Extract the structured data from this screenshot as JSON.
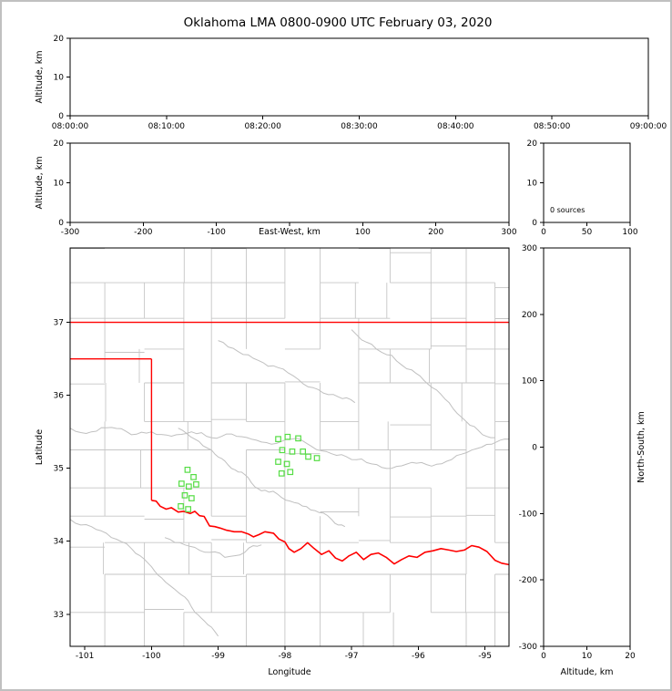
{
  "title": "Oklahoma LMA 0800-0900 UTC February 03, 2020",
  "colors": {
    "frame": "#c0c0c0",
    "axis": "#000000",
    "county_line": "#c6c6c6",
    "river_gray": "#c0c0c0",
    "state_border": "#ff0000",
    "station_green": "#55dd44",
    "background": "#ffffff"
  },
  "chart_data": [
    {
      "id": "time_height_panel",
      "type": "scatter",
      "ylabel": "Altitude, km",
      "ylim": [
        0,
        20
      ],
      "yticks": [
        0,
        10,
        20
      ],
      "xtick_labels": [
        "08:00:00",
        "08:10:00",
        "08:20:00",
        "08:30:00",
        "08:40:00",
        "08:50:00",
        "09:00:00"
      ],
      "points": []
    },
    {
      "id": "ew_height_panel",
      "type": "scatter",
      "xlabel": "East-West, km",
      "xlim": [
        -300,
        300
      ],
      "xticks": [
        -300,
        -200,
        -100,
        0,
        100,
        200,
        300
      ],
      "ylabel": "Altitude, km",
      "ylim": [
        0,
        20
      ],
      "yticks": [
        0,
        10,
        20
      ],
      "points": []
    },
    {
      "id": "altitude_histogram_panel",
      "type": "histogram",
      "annotation": "0 sources",
      "xlim": [
        0,
        100
      ],
      "xticks": [
        0,
        50,
        100
      ],
      "ylim": [
        0,
        20
      ],
      "yticks": [
        0,
        10,
        20
      ],
      "values": []
    },
    {
      "id": "plan_view_map",
      "type": "scatter",
      "xlabel": "Longitude",
      "ylabel": "Latitude",
      "xlim": [
        -101.22,
        -94.64
      ],
      "xticks": [
        -101,
        -100,
        -99,
        -98,
        -97,
        -96,
        -95
      ],
      "ylim": [
        32.56,
        38.02
      ],
      "yticks": [
        33,
        34,
        35,
        36,
        37
      ],
      "stations": [
        [
          -99.46,
          34.98
        ],
        [
          -99.37,
          34.88
        ],
        [
          -99.55,
          34.79
        ],
        [
          -99.44,
          34.75
        ],
        [
          -99.33,
          34.78
        ],
        [
          -99.5,
          34.63
        ],
        [
          -99.4,
          34.59
        ],
        [
          -99.56,
          34.48
        ],
        [
          -99.45,
          34.44
        ],
        [
          -98.1,
          35.4
        ],
        [
          -97.96,
          35.43
        ],
        [
          -97.8,
          35.41
        ],
        [
          -98.04,
          35.25
        ],
        [
          -97.89,
          35.23
        ],
        [
          -98.1,
          35.09
        ],
        [
          -97.97,
          35.06
        ],
        [
          -97.73,
          35.23
        ],
        [
          -97.65,
          35.16
        ],
        [
          -97.52,
          35.14
        ],
        [
          -97.92,
          34.95
        ],
        [
          -98.05,
          34.93
        ]
      ],
      "state_border": {
        "kansas_south_37n": [
          [
            -101.22,
            37.0
          ],
          [
            -94.64,
            37.0
          ]
        ],
        "panhandle_south_36_5n": [
          [
            -101.22,
            36.5
          ],
          [
            -100.0,
            36.5
          ]
        ],
        "texas_east_100w": [
          [
            -100.0,
            36.5
          ],
          [
            -100.0,
            34.56
          ]
        ],
        "red_river": [
          [
            -100.0,
            34.56
          ],
          [
            -99.93,
            34.55
          ],
          [
            -99.87,
            34.48
          ],
          [
            -99.78,
            34.44
          ],
          [
            -99.7,
            34.46
          ],
          [
            -99.6,
            34.4
          ],
          [
            -99.52,
            34.41
          ],
          [
            -99.42,
            34.38
          ],
          [
            -99.35,
            34.41
          ],
          [
            -99.28,
            34.35
          ],
          [
            -99.21,
            34.34
          ],
          [
            -99.13,
            34.21
          ],
          [
            -99.05,
            34.2
          ],
          [
            -98.97,
            34.18
          ],
          [
            -98.87,
            34.15
          ],
          [
            -98.76,
            34.13
          ],
          [
            -98.65,
            34.13
          ],
          [
            -98.55,
            34.1
          ],
          [
            -98.47,
            34.06
          ],
          [
            -98.39,
            34.09
          ],
          [
            -98.3,
            34.13
          ],
          [
            -98.17,
            34.11
          ],
          [
            -98.09,
            34.03
          ],
          [
            -98.0,
            33.99
          ],
          [
            -97.94,
            33.9
          ],
          [
            -97.86,
            33.85
          ],
          [
            -97.76,
            33.9
          ],
          [
            -97.66,
            33.98
          ],
          [
            -97.56,
            33.9
          ],
          [
            -97.45,
            33.82
          ],
          [
            -97.34,
            33.87
          ],
          [
            -97.24,
            33.77
          ],
          [
            -97.14,
            33.73
          ],
          [
            -97.04,
            33.8
          ],
          [
            -96.93,
            33.85
          ],
          [
            -96.82,
            33.75
          ],
          [
            -96.71,
            33.82
          ],
          [
            -96.6,
            33.84
          ],
          [
            -96.48,
            33.78
          ],
          [
            -96.36,
            33.69
          ],
          [
            -96.25,
            33.75
          ],
          [
            -96.14,
            33.8
          ],
          [
            -96.02,
            33.78
          ],
          [
            -95.9,
            33.85
          ],
          [
            -95.78,
            33.87
          ],
          [
            -95.66,
            33.9
          ],
          [
            -95.54,
            33.88
          ],
          [
            -95.43,
            33.86
          ],
          [
            -95.31,
            33.88
          ],
          [
            -95.2,
            33.94
          ],
          [
            -95.09,
            33.92
          ],
          [
            -94.97,
            33.86
          ],
          [
            -94.85,
            33.74
          ],
          [
            -94.75,
            33.7
          ],
          [
            -94.64,
            33.68
          ]
        ]
      },
      "rivers": [
        [
          [
            -101.22,
            35.55
          ],
          [
            -100.9,
            35.5
          ],
          [
            -100.6,
            35.56
          ],
          [
            -100.3,
            35.46
          ],
          [
            -100.0,
            35.5
          ],
          [
            -99.7,
            35.44
          ],
          [
            -99.4,
            35.5
          ],
          [
            -99.1,
            35.42
          ],
          [
            -98.8,
            35.47
          ],
          [
            -98.5,
            35.4
          ],
          [
            -98.2,
            35.33
          ],
          [
            -97.9,
            35.4
          ],
          [
            -97.6,
            35.3
          ],
          [
            -97.3,
            35.2
          ],
          [
            -97.0,
            35.12
          ],
          [
            -96.7,
            35.06
          ],
          [
            -96.4,
            35.0
          ],
          [
            -96.1,
            35.08
          ],
          [
            -95.8,
            35.03
          ],
          [
            -95.5,
            35.12
          ],
          [
            -95.2,
            35.25
          ],
          [
            -94.9,
            35.33
          ],
          [
            -94.64,
            35.4
          ]
        ],
        [
          [
            -99.0,
            36.75
          ],
          [
            -98.7,
            36.6
          ],
          [
            -98.4,
            36.48
          ],
          [
            -98.1,
            36.38
          ],
          [
            -97.8,
            36.22
          ],
          [
            -97.5,
            36.08
          ],
          [
            -97.2,
            35.98
          ],
          [
            -96.95,
            35.9
          ]
        ],
        [
          [
            -97.0,
            36.9
          ],
          [
            -96.7,
            36.7
          ],
          [
            -96.4,
            36.55
          ],
          [
            -96.1,
            36.35
          ],
          [
            -95.85,
            36.15
          ],
          [
            -95.6,
            35.95
          ],
          [
            -95.35,
            35.7
          ],
          [
            -95.1,
            35.52
          ],
          [
            -94.85,
            35.42
          ]
        ],
        [
          [
            -99.6,
            35.55
          ],
          [
            -99.35,
            35.4
          ],
          [
            -99.1,
            35.25
          ],
          [
            -98.9,
            35.1
          ],
          [
            -98.7,
            34.95
          ],
          [
            -98.5,
            34.8
          ],
          [
            -98.3,
            34.7
          ],
          [
            -98.05,
            34.6
          ],
          [
            -97.8,
            34.52
          ],
          [
            -97.55,
            34.42
          ],
          [
            -97.3,
            34.3
          ],
          [
            -97.1,
            34.2
          ]
        ],
        [
          [
            -99.8,
            34.05
          ],
          [
            -99.5,
            33.95
          ],
          [
            -99.2,
            33.85
          ],
          [
            -98.9,
            33.78
          ],
          [
            -98.6,
            33.85
          ],
          [
            -98.35,
            33.95
          ]
        ],
        [
          [
            -101.22,
            34.3
          ],
          [
            -100.9,
            34.2
          ],
          [
            -100.6,
            34.05
          ],
          [
            -100.3,
            33.9
          ],
          [
            -100.05,
            33.7
          ],
          [
            -99.85,
            33.5
          ],
          [
            -99.6,
            33.3
          ],
          [
            -99.4,
            33.1
          ],
          [
            -99.2,
            32.9
          ],
          [
            -99.0,
            32.7
          ]
        ]
      ]
    },
    {
      "id": "ns_height_panel",
      "type": "scatter",
      "xlabel": "Altitude, km",
      "xlim": [
        0,
        20
      ],
      "xticks": [
        0,
        10,
        20
      ],
      "ylabel": "North-South, km",
      "ylim": [
        -300,
        300
      ],
      "yticks": [
        -300,
        -200,
        -100,
        0,
        100,
        200,
        300
      ],
      "points": []
    }
  ]
}
